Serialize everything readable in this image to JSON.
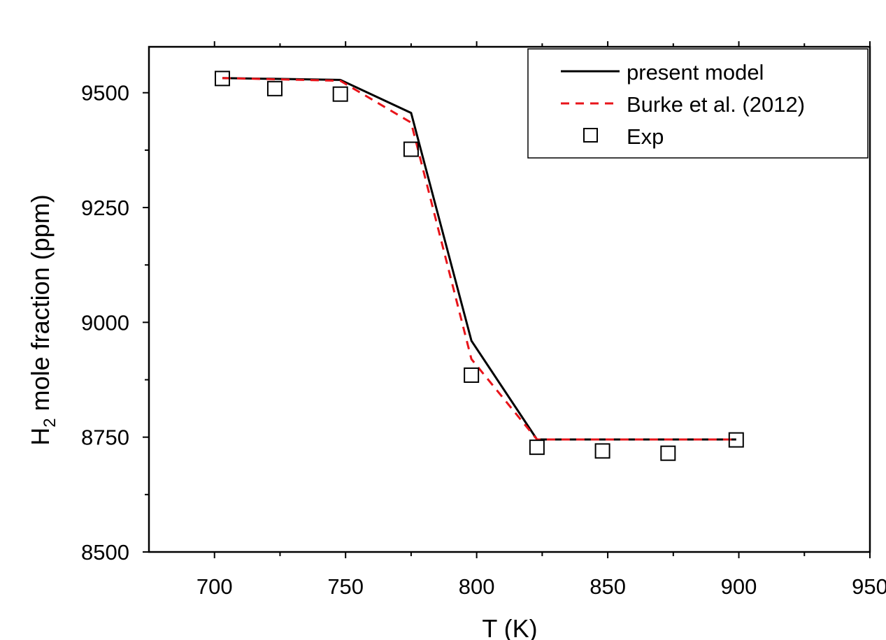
{
  "chart_data": {
    "type": "line",
    "xlabel": "T (K)",
    "ylabel_main": "H",
    "ylabel_sub": "2",
    "ylabel_rest": " mole fraction (ppm)",
    "xlim": [
      675,
      950
    ],
    "ylim": [
      8500,
      9600
    ],
    "xticks": [
      700,
      750,
      800,
      850,
      900,
      950
    ],
    "xminor": [
      725,
      775,
      825,
      875,
      925
    ],
    "yticks": [
      8500,
      8750,
      9000,
      9250,
      9500
    ],
    "yminor": [
      8625,
      8875,
      9125,
      9375
    ],
    "legend_position": "top-right",
    "series": [
      {
        "name": "present model",
        "style": "solid",
        "color": "#000000",
        "x": [
          703,
          748,
          775,
          798,
          823,
          899
        ],
        "y": [
          9532,
          9528,
          9456,
          8960,
          8745,
          8745
        ]
      },
      {
        "name": "Burke et al. (2012)",
        "style": "dashed",
        "color": "#e8141a",
        "x": [
          703,
          748,
          775,
          798,
          823,
          899
        ],
        "y": [
          9532,
          9526,
          9435,
          8920,
          8745,
          8745
        ]
      },
      {
        "name": "Exp",
        "style": "markers",
        "marker": "open-square",
        "color": "#000000",
        "x": [
          703,
          723,
          748,
          775,
          798,
          823,
          848,
          873,
          899
        ],
        "y": [
          9531,
          9509,
          9497,
          9377,
          8885,
          8728,
          8720,
          8715,
          8744
        ]
      }
    ]
  }
}
